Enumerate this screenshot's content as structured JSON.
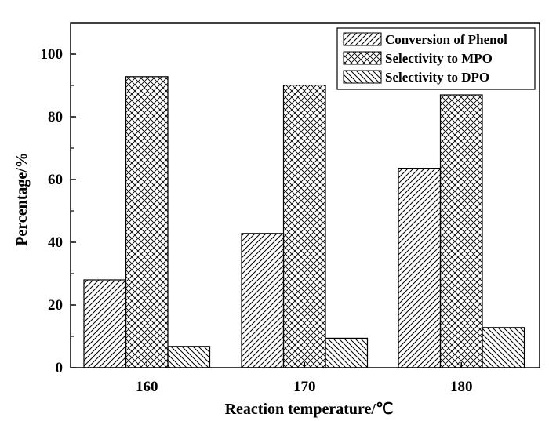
{
  "chart_data": {
    "type": "bar",
    "categories": [
      "160",
      "170",
      "180"
    ],
    "series": [
      {
        "name": "Conversion of Phenol",
        "values": [
          28.0,
          42.8,
          63.6
        ],
        "pattern": "diag-right"
      },
      {
        "name": "Selectivity to MPO",
        "values": [
          92.8,
          90.1,
          87.0
        ],
        "pattern": "crosshatch"
      },
      {
        "name": "Selectivity to DPO",
        "values": [
          6.8,
          9.4,
          12.8
        ],
        "pattern": "diag-left"
      }
    ],
    "xlabel": "Reaction temperature/℃",
    "ylabel": "Percentage/%",
    "ylim": [
      0,
      110
    ],
    "yticks": [
      "0",
      "20",
      "40",
      "60",
      "80",
      "100"
    ],
    "grid": false,
    "legend_position": "top-right",
    "colors": {
      "stroke": "#000000",
      "background": "#ffffff"
    }
  }
}
